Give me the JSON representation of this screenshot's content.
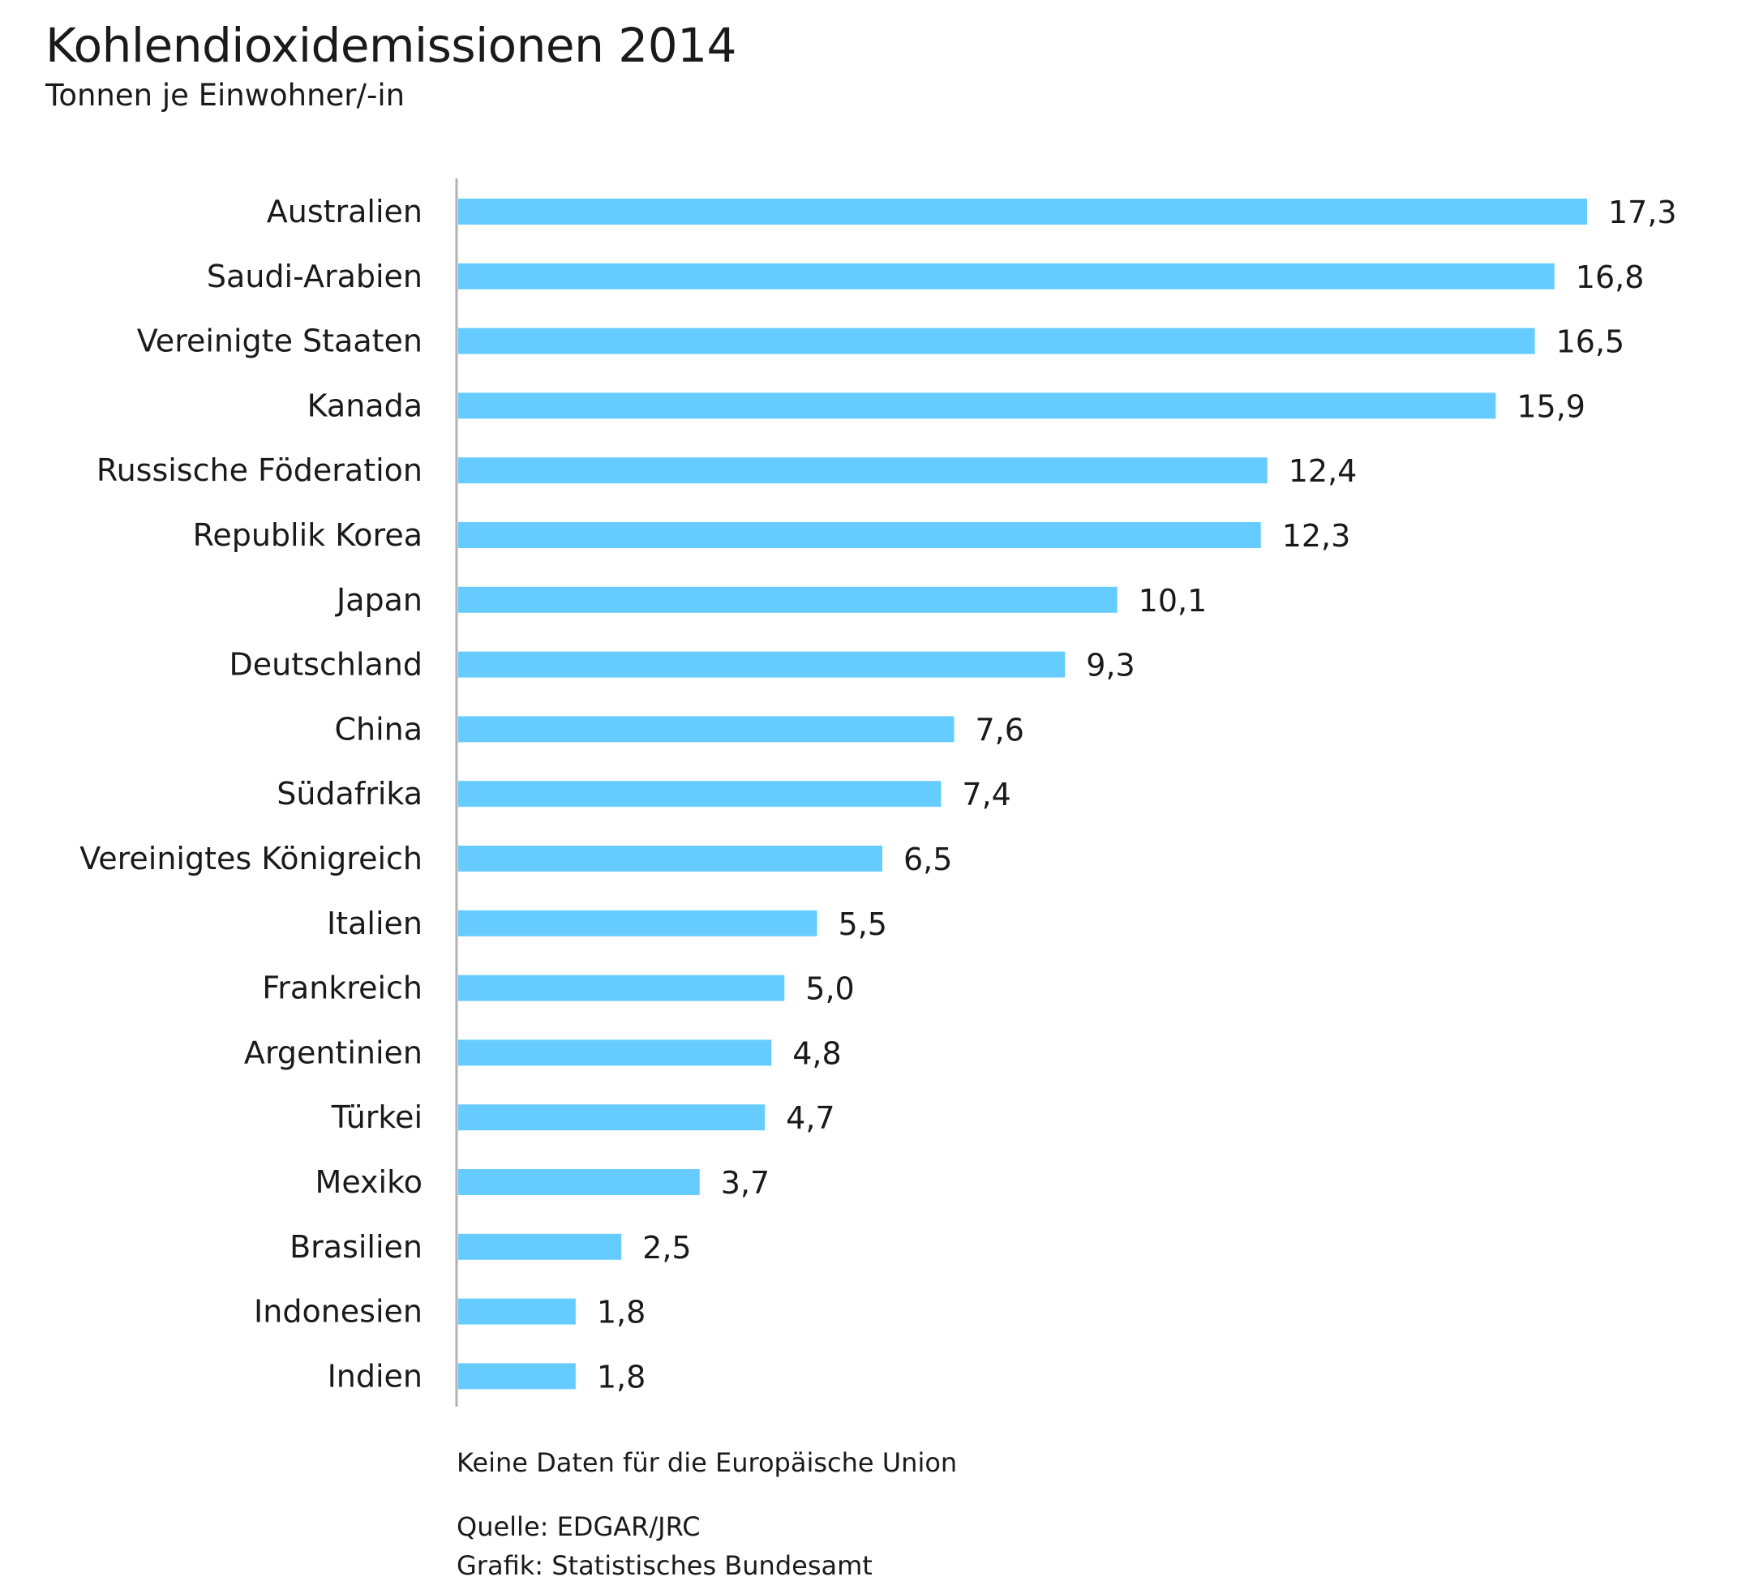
{
  "chart_data": {
    "type": "bar",
    "orientation": "horizontal",
    "title": "Kohlendioxidemissionen 2014",
    "subtitle": "Tonnen je Einwohner/-in",
    "categories": [
      "Australien",
      "Saudi-Arabien",
      "Vereinigte Staaten",
      "Kanada",
      "Russische Föderation",
      "Republik Korea",
      "Japan",
      "Deutschland",
      "China",
      "Südafrika",
      "Vereinigtes Königreich",
      "Italien",
      "Frankreich",
      "Argentinien",
      "Türkei",
      "Mexiko",
      "Brasilien",
      "Indonesien",
      "Indien"
    ],
    "values": [
      17.3,
      16.8,
      16.5,
      15.9,
      12.4,
      12.3,
      10.1,
      9.3,
      7.6,
      7.4,
      6.5,
      5.5,
      5.0,
      4.8,
      4.7,
      3.7,
      2.5,
      1.8,
      1.8
    ],
    "value_labels": [
      "17,3",
      "16,8",
      "16,5",
      "15,9",
      "12,4",
      "12,3",
      "10,1",
      "9,3",
      "7,6",
      "7,4",
      "6,5",
      "5,5",
      "5,0",
      "4,8",
      "4,7",
      "3,7",
      "2,5",
      "1,8",
      "1,8"
    ],
    "xlim": [
      0,
      17.3
    ],
    "bar_color": "#66ccff",
    "axis_color": "#b3b3b3",
    "grid": false,
    "legend": false,
    "note": "Keine Daten für die Europäische Union",
    "source": "Quelle: EDGAR/JRC",
    "credit": "Grafik: Statistisches Bundesamt"
  }
}
